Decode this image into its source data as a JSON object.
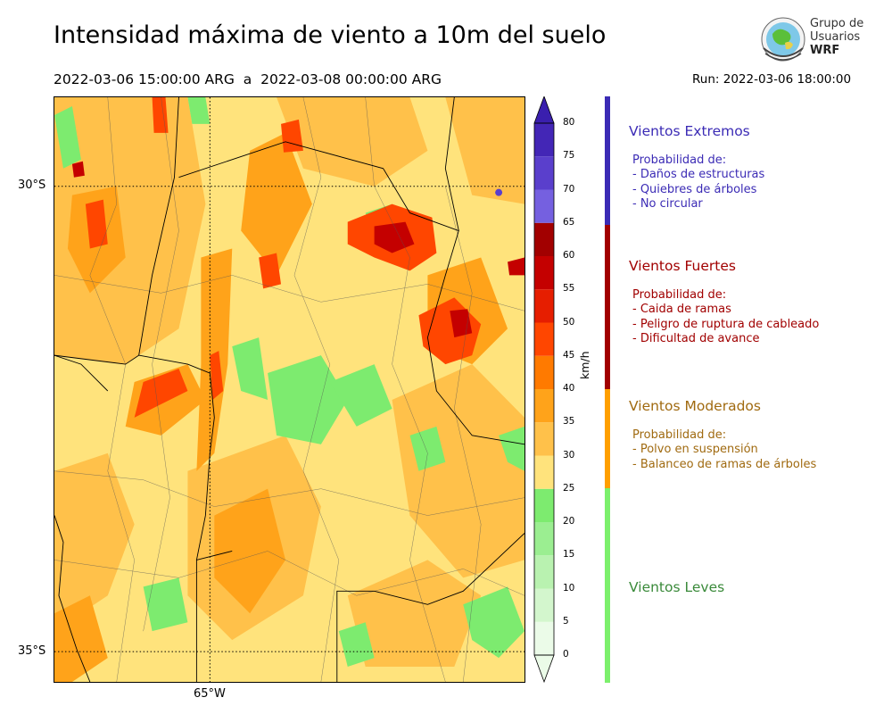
{
  "title": "Intensidad máxima de viento a 10m del suelo",
  "period": "2022-03-06 15:00:00 ARG  a  2022-03-08 00:00:00 ARG",
  "run": "Run: 2022-03-06 18:00:00",
  "logo": {
    "line1": "Grupo de",
    "line2": "Usuarios",
    "line3": "WRF"
  },
  "map_axes": {
    "lat_labels": [
      "30°S",
      "35°S"
    ],
    "lon_labels": [
      "65°W"
    ]
  },
  "colorbar": {
    "unit": "km/h",
    "ticks": [
      "0",
      "5",
      "10",
      "15",
      "20",
      "25",
      "30",
      "35",
      "40",
      "45",
      "50",
      "55",
      "60",
      "65",
      "70",
      "75",
      "80"
    ],
    "bins": [
      0,
      5,
      10,
      15,
      20,
      25,
      30,
      35,
      40,
      45,
      50,
      55,
      60,
      65,
      70,
      75,
      80
    ],
    "colors": [
      "#ebfbe8",
      "#d3f6cd",
      "#b9f2b0",
      "#9bee91",
      "#7deb6f",
      "#ffe37c",
      "#ffc14a",
      "#ffa31a",
      "#ff7a00",
      "#ff4600",
      "#e61e00",
      "#c40000",
      "#a20000",
      "#7560e0",
      "#5a3fcc",
      "#4326b6",
      "#3a1fae"
    ]
  },
  "legend": [
    {
      "name": "Vientos Extremos",
      "color": "#3b2bb5",
      "lines": [
        "Probabilidad de:",
        "- Daños de estructuras",
        "- Quiebres de árboles",
        "- No circular"
      ]
    },
    {
      "name": "Vientos Fuertes",
      "color": "#a10000",
      "lines": [
        "Probabilidad de:",
        "- Caida de ramas",
        "- Peligro de ruptura de cableado",
        "- Dificultad de avance"
      ]
    },
    {
      "name": "Vientos Moderados",
      "color": "#a06a10",
      "bar_color": "#ff9f00",
      "lines": [
        "Probabilidad de:",
        "- Polvo en suspensión",
        "- Balanceo de ramas de árboles"
      ]
    },
    {
      "name": "Vientos Leves",
      "color": "#3a8a3a",
      "bar_color": "#7cf06c",
      "lines": []
    }
  ]
}
